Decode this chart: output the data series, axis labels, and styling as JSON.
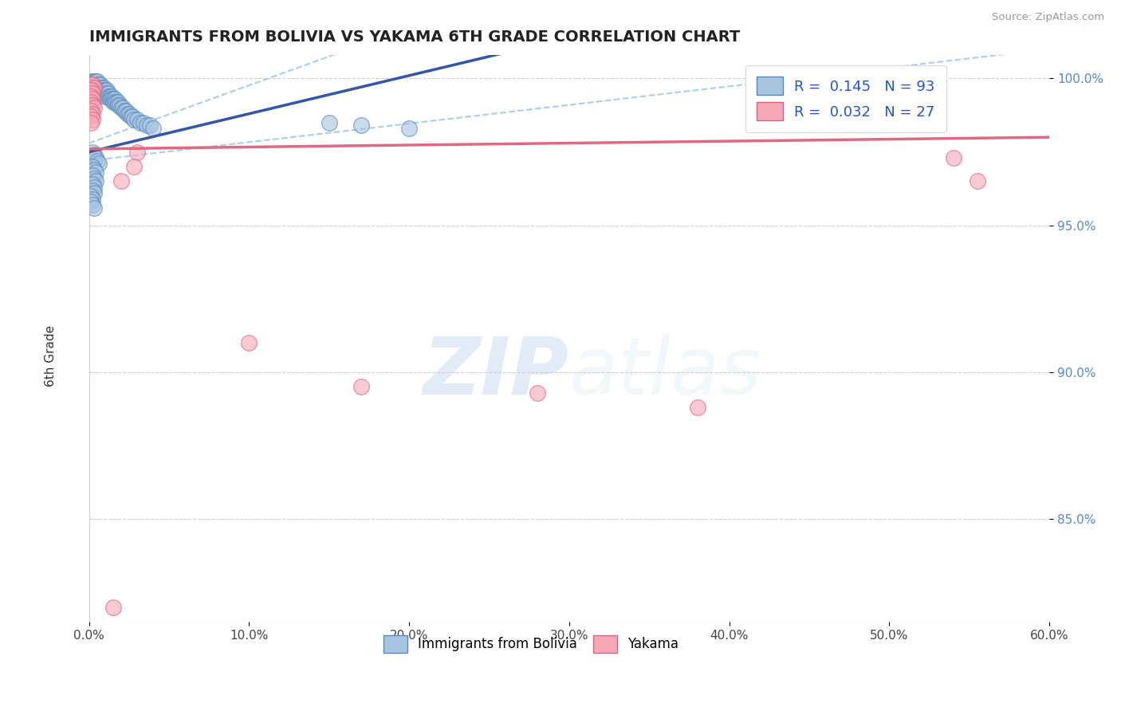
{
  "title": "IMMIGRANTS FROM BOLIVIA VS YAKAMA 6TH GRADE CORRELATION CHART",
  "source": "Source: ZipAtlas.com",
  "xlabel_blue": "Immigrants from Bolivia",
  "xlabel_pink": "Yakama",
  "ylabel": "6th Grade",
  "watermark_zip": "ZIP",
  "watermark_atlas": "atlas",
  "legend_blue_r": "R = 0.145",
  "legend_blue_n": "N = 93",
  "legend_pink_r": "R = 0.032",
  "legend_pink_n": "N = 27",
  "blue_color": "#a8c4e0",
  "blue_edge_color": "#5588bb",
  "pink_color": "#f4a8b8",
  "pink_edge_color": "#e06080",
  "trend_blue_color": "#3355aa",
  "trend_pink_color": "#e06880",
  "conf_band_color": "#aaccee",
  "xlim": [
    0.0,
    0.6
  ],
  "ylim": [
    0.815,
    1.008
  ],
  "y_ticks": [
    0.85,
    0.9,
    0.95,
    1.0
  ],
  "y_tick_labels": [
    "85.0%",
    "90.0%",
    "95.0%",
    "100.0%"
  ],
  "x_ticks": [
    0.0,
    0.1,
    0.2,
    0.3,
    0.4,
    0.5,
    0.6
  ],
  "x_tick_labels": [
    "0.0%",
    "10.0%",
    "20.0%",
    "30.0%",
    "40.0%",
    "50.0%",
    "60.0%"
  ],
  "blue_x": [
    0.001,
    0.001,
    0.001,
    0.002,
    0.002,
    0.002,
    0.002,
    0.003,
    0.003,
    0.003,
    0.003,
    0.004,
    0.004,
    0.004,
    0.004,
    0.004,
    0.005,
    0.005,
    0.005,
    0.005,
    0.005,
    0.005,
    0.006,
    0.006,
    0.006,
    0.006,
    0.007,
    0.007,
    0.007,
    0.007,
    0.008,
    0.008,
    0.008,
    0.009,
    0.009,
    0.009,
    0.01,
    0.01,
    0.01,
    0.011,
    0.011,
    0.012,
    0.012,
    0.013,
    0.013,
    0.014,
    0.014,
    0.015,
    0.015,
    0.016,
    0.016,
    0.017,
    0.018,
    0.018,
    0.019,
    0.02,
    0.021,
    0.022,
    0.023,
    0.024,
    0.025,
    0.026,
    0.027,
    0.028,
    0.03,
    0.032,
    0.034,
    0.036,
    0.038,
    0.04,
    0.002,
    0.003,
    0.004,
    0.005,
    0.006,
    0.002,
    0.003,
    0.004,
    0.002,
    0.003,
    0.004,
    0.002,
    0.003,
    0.002,
    0.003,
    0.001,
    0.002,
    0.001,
    0.002,
    0.003,
    0.15,
    0.17,
    0.2
  ],
  "blue_y": [
    0.998,
    0.997,
    0.999,
    0.998,
    0.997,
    0.996,
    0.999,
    0.998,
    0.997,
    0.996,
    0.999,
    0.998,
    0.997,
    0.996,
    0.995,
    0.999,
    0.998,
    0.997,
    0.996,
    0.995,
    0.994,
    0.999,
    0.998,
    0.997,
    0.996,
    0.995,
    0.998,
    0.997,
    0.996,
    0.995,
    0.997,
    0.996,
    0.995,
    0.997,
    0.996,
    0.995,
    0.996,
    0.995,
    0.994,
    0.996,
    0.995,
    0.995,
    0.994,
    0.994,
    0.993,
    0.994,
    0.993,
    0.993,
    0.992,
    0.993,
    0.992,
    0.992,
    0.992,
    0.991,
    0.991,
    0.99,
    0.99,
    0.989,
    0.989,
    0.988,
    0.988,
    0.987,
    0.987,
    0.986,
    0.986,
    0.985,
    0.985,
    0.984,
    0.984,
    0.983,
    0.975,
    0.974,
    0.973,
    0.972,
    0.971,
    0.97,
    0.969,
    0.968,
    0.967,
    0.966,
    0.965,
    0.964,
    0.963,
    0.962,
    0.961,
    0.96,
    0.959,
    0.958,
    0.957,
    0.956,
    0.985,
    0.984,
    0.983
  ],
  "pink_x": [
    0.001,
    0.001,
    0.002,
    0.002,
    0.003,
    0.001,
    0.002,
    0.001,
    0.002,
    0.001,
    0.002,
    0.003,
    0.001,
    0.002,
    0.001,
    0.002,
    0.001,
    0.03,
    0.028,
    0.1,
    0.17,
    0.28,
    0.38,
    0.54,
    0.555,
    0.02,
    0.015
  ],
  "pink_y": [
    0.998,
    0.997,
    0.998,
    0.996,
    0.997,
    0.996,
    0.995,
    0.994,
    0.993,
    0.992,
    0.991,
    0.99,
    0.989,
    0.988,
    0.987,
    0.986,
    0.985,
    0.975,
    0.97,
    0.91,
    0.895,
    0.893,
    0.888,
    0.973,
    0.965,
    0.965,
    0.82
  ]
}
